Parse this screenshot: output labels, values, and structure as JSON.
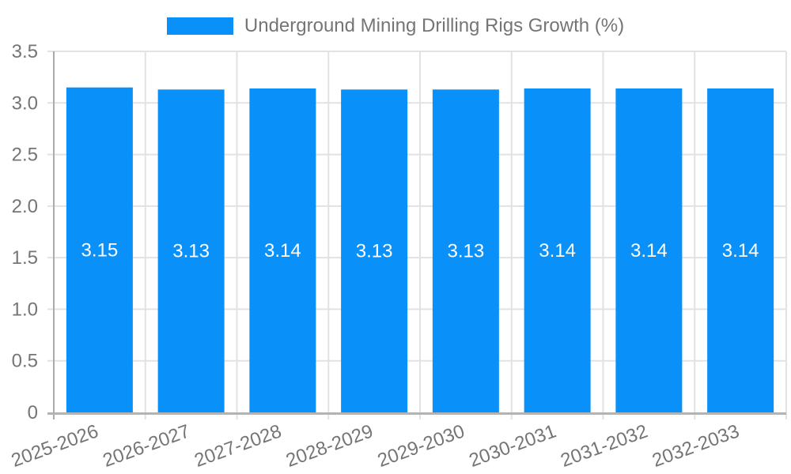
{
  "chart_data": {
    "type": "bar",
    "title": "Underground Mining Drilling Rigs Growth (%)",
    "legend_position": "top",
    "categories": [
      "2025-2026",
      "2026-2027",
      "2027-2028",
      "2028-2029",
      "2029-2030",
      "2030-2031",
      "2031-2032",
      "2032-2033"
    ],
    "values": [
      3.15,
      3.13,
      3.14,
      3.13,
      3.13,
      3.14,
      3.14,
      3.14
    ],
    "value_labels": [
      "3.15",
      "3.13",
      "3.14",
      "3.13",
      "3.13",
      "3.14",
      "3.14",
      "3.14"
    ],
    "xlabel": "",
    "ylabel": "",
    "ylim": [
      0,
      3.5
    ],
    "ytick_values": [
      0,
      0.5,
      1.0,
      1.5,
      2.0,
      2.5,
      3.0,
      3.5
    ],
    "ytick_labels": [
      "0",
      "0.5",
      "1.0",
      "1.5",
      "2.0",
      "2.5",
      "3.0",
      "3.5"
    ],
    "grid": true,
    "x_label_rotation_deg": -20,
    "colors": {
      "bar": "#0990f9",
      "grid_line": "#e2e2e2",
      "y_axis_line": "#ababab",
      "x_axis_line": "#b3b3b3",
      "tick_text": "#757575",
      "value_label_text": "#ffffff",
      "background": "#ffffff"
    }
  }
}
